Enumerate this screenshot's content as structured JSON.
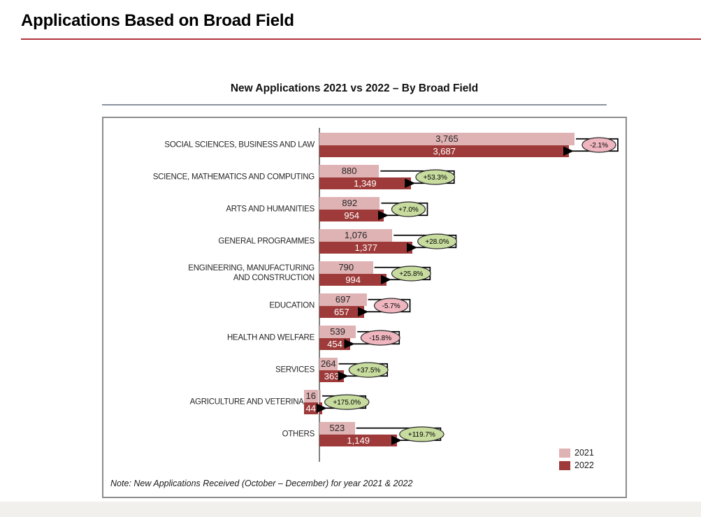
{
  "page": {
    "title": "Applications Based on Broad Field"
  },
  "chart": {
    "title": "New Applications 2021 vs 2022 – By Broad Field",
    "note": "Note: New Applications Received (October – December) for year 2021 & 2022",
    "legend": [
      {
        "label": "2021",
        "color": "#dfb2b4"
      },
      {
        "label": "2022",
        "color": "#9e3b3a"
      }
    ]
  },
  "colors": {
    "bar_2021": "#dfb2b4",
    "bar_2022": "#9e3b3a",
    "badge_positive": "#c7dc9e",
    "badge_negative": "#efb6bf",
    "badge_border": "#2b2b2b",
    "connector": "#000000",
    "axis": "#808080",
    "title_rule": "#b2333d",
    "subtitle_rule": "#8a939e"
  },
  "chart_data": {
    "type": "bar",
    "orientation": "horizontal",
    "title": "New Applications 2021 vs 2022 – By Broad Field",
    "categories": [
      "SOCIAL SCIENCES, BUSINESS AND LAW",
      "SCIENCE, MATHEMATICS AND COMPUTING",
      "ARTS AND HUMANITIES",
      "GENERAL PROGRAMMES",
      "ENGINEERING, MANUFACTURING\nAND CONSTRUCTION",
      "EDUCATION",
      "HEALTH AND WELFARE",
      "SERVICES",
      "AGRICULTURE AND VETERINARY",
      "OTHERS"
    ],
    "series": [
      {
        "name": "2021",
        "values": [
          3765,
          880,
          892,
          1076,
          790,
          697,
          539,
          264,
          16,
          523
        ]
      },
      {
        "name": "2022",
        "values": [
          3687,
          1349,
          954,
          1377,
          994,
          657,
          454,
          363,
          44,
          1149
        ]
      }
    ],
    "value_labels": [
      [
        "3,765",
        "880",
        "892",
        "1,076",
        "790",
        "697",
        "539",
        "264",
        "16",
        "523"
      ],
      [
        "3,687",
        "1,349",
        "954",
        "1,377",
        "994",
        "657",
        "454",
        "363",
        "44",
        "1,149"
      ]
    ],
    "change_badges": [
      {
        "text": "-2.1%",
        "positive": false
      },
      {
        "text": "+53.3%",
        "positive": true
      },
      {
        "text": "+7.0%",
        "positive": true
      },
      {
        "text": "+28.0%",
        "positive": true
      },
      {
        "text": "+25.8%",
        "positive": true
      },
      {
        "text": "-5.7%",
        "positive": false
      },
      {
        "text": "-15.8%",
        "positive": false
      },
      {
        "text": "+37.5%",
        "positive": true
      },
      {
        "text": "+175.0%",
        "positive": true
      },
      {
        "text": "+119.7%",
        "positive": true
      }
    ],
    "xlim": [
      0,
      3765
    ],
    "grid": false,
    "legend_position": "bottom-right"
  }
}
